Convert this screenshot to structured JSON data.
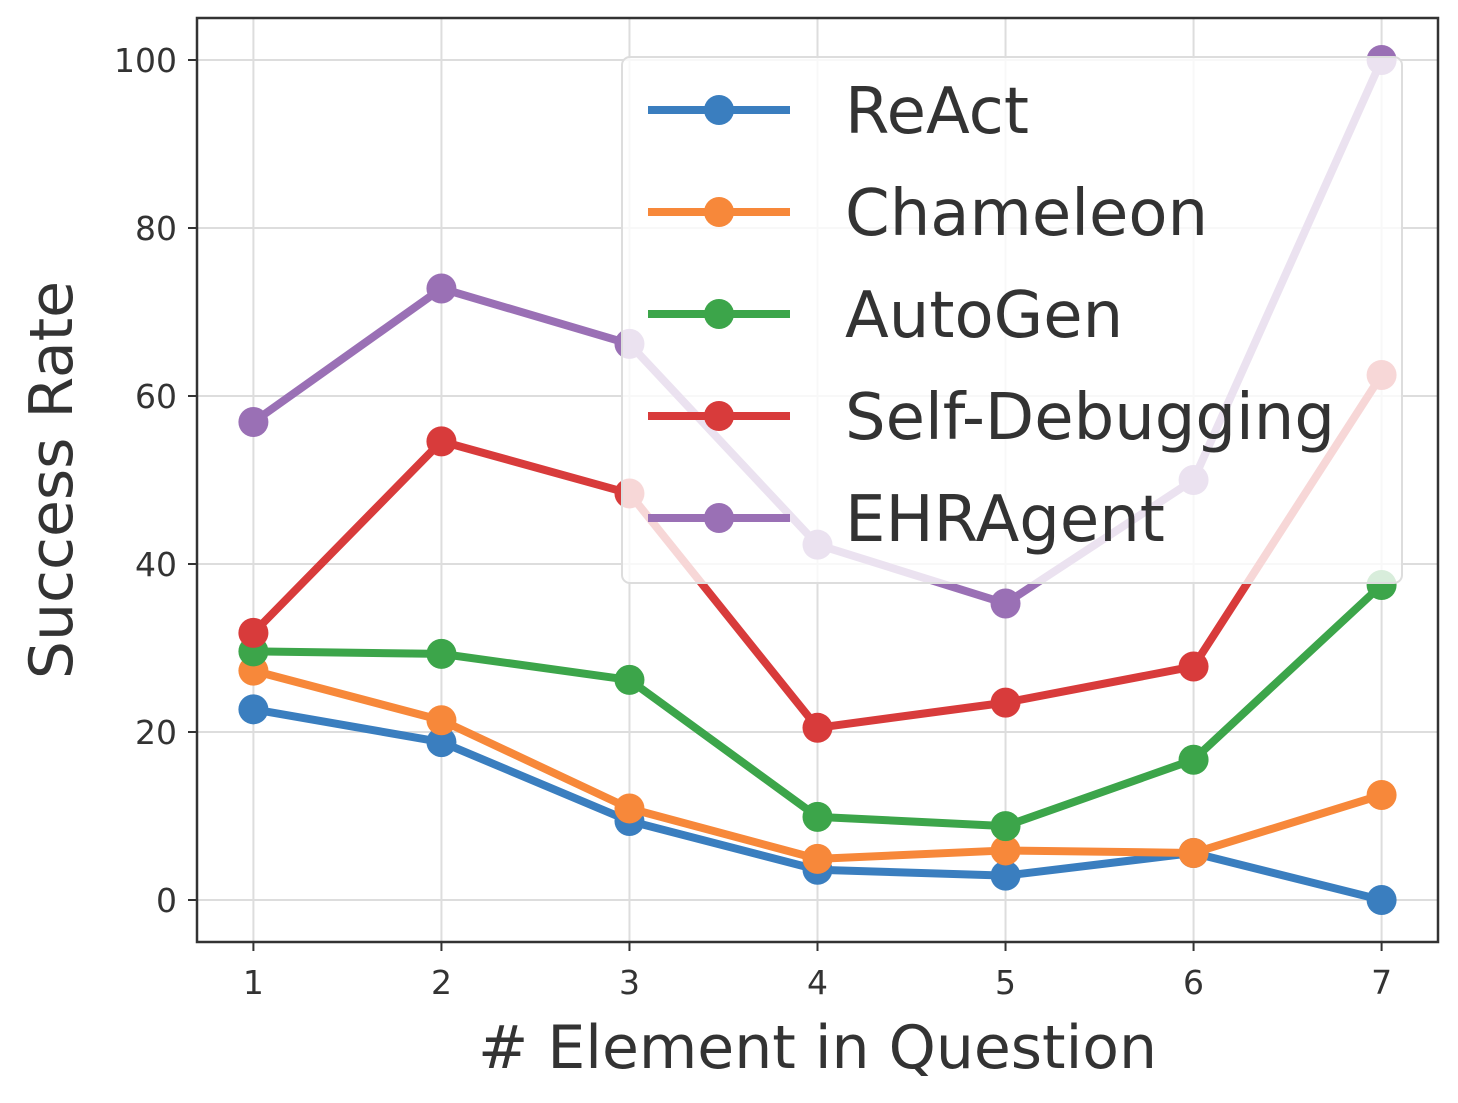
{
  "chart_data": {
    "type": "line",
    "title": "",
    "xlabel": "# Element in Question",
    "ylabel": "Success Rate",
    "x": [
      1,
      2,
      3,
      4,
      5,
      6,
      7
    ],
    "xlim": [
      0.7,
      7.3
    ],
    "ylim": [
      -5,
      105
    ],
    "xticks": [
      1,
      2,
      3,
      4,
      5,
      6,
      7
    ],
    "yticks": [
      0,
      20,
      40,
      60,
      80,
      100
    ],
    "grid": true,
    "legend_position": "top-right",
    "series": [
      {
        "name": "ReAct",
        "color": "#3a7ebf",
        "values": [
          22.7,
          18.8,
          9.4,
          3.6,
          2.9,
          5.6,
          0.0
        ]
      },
      {
        "name": "Chameleon",
        "color": "#f7883a",
        "values": [
          27.3,
          21.4,
          10.9,
          4.9,
          5.9,
          5.6,
          12.5
        ]
      },
      {
        "name": "AutoGen",
        "color": "#3ca54a",
        "values": [
          29.6,
          29.3,
          26.2,
          9.9,
          8.8,
          16.7,
          37.5
        ]
      },
      {
        "name": "Self-Debugging",
        "color": "#d83b3b",
        "values": [
          31.8,
          54.6,
          48.4,
          20.5,
          23.5,
          27.8,
          62.5
        ]
      },
      {
        "name": "EHRAgent",
        "color": "#9a70b5",
        "values": [
          56.9,
          72.8,
          66.2,
          42.3,
          35.3,
          50.0,
          100.0
        ]
      }
    ]
  }
}
